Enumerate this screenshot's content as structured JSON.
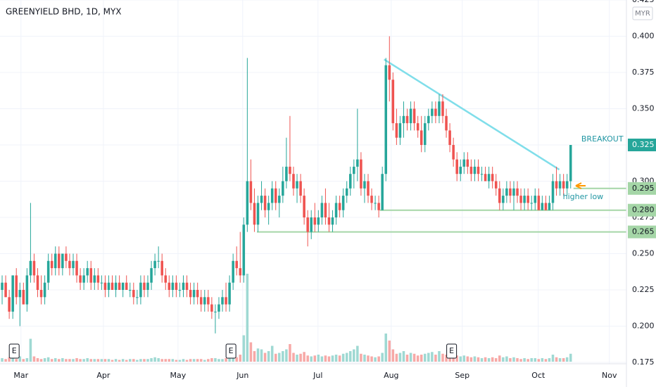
{
  "chart_data": {
    "type": "candlestick",
    "title": "GREENYIELD BHD, 1D, MYX",
    "currency": "MYR",
    "up_color": "#26a69a",
    "down_color": "#ef5350",
    "up_volume_color": "#9fd9d3",
    "down_volume_color": "#f7a9a7",
    "grid": true,
    "ylim": [
      0.175,
      0.425
    ],
    "yticks": [
      {
        "value": 0.175,
        "label": "0.175"
      },
      {
        "value": 0.2,
        "label": "0.200"
      },
      {
        "value": 0.225,
        "label": "0.225"
      },
      {
        "value": 0.25,
        "label": "0.250"
      },
      {
        "value": 0.275,
        "label": "0.275"
      },
      {
        "value": 0.3,
        "label": "0.300"
      },
      {
        "value": 0.325,
        "label": "0.325"
      },
      {
        "value": 0.35,
        "label": "0.350"
      },
      {
        "value": 0.375,
        "label": "0.375"
      },
      {
        "value": 0.4,
        "label": "0.400"
      },
      {
        "value": 0.425,
        "label": "0.425"
      }
    ],
    "xlim": [
      -0.6,
      175.7
    ],
    "xticks": [
      {
        "value": 5.3,
        "label": "Mar"
      },
      {
        "value": 28.5,
        "label": "Apr"
      },
      {
        "value": 49.5,
        "label": "May"
      },
      {
        "value": 67.7,
        "label": "Jun"
      },
      {
        "value": 88.9,
        "label": "Jul"
      },
      {
        "value": 109.5,
        "label": "Aug"
      },
      {
        "value": 129.5,
        "label": "Sep"
      },
      {
        "value": 150.9,
        "label": "Oct"
      },
      {
        "value": 170.9,
        "label": "Nov"
      }
    ],
    "ohlc": [
      [
        0.225,
        0.235,
        0.215,
        0.23
      ],
      [
        0.23,
        0.235,
        0.22,
        0.22
      ],
      [
        0.22,
        0.225,
        0.205,
        0.21
      ],
      [
        0.21,
        0.235,
        0.205,
        0.235
      ],
      [
        0.235,
        0.24,
        0.215,
        0.22
      ],
      [
        0.22,
        0.23,
        0.2,
        0.225
      ],
      [
        0.225,
        0.23,
        0.215,
        0.215
      ],
      [
        0.215,
        0.24,
        0.21,
        0.235
      ],
      [
        0.235,
        0.285,
        0.23,
        0.245
      ],
      [
        0.245,
        0.25,
        0.23,
        0.235
      ],
      [
        0.235,
        0.24,
        0.22,
        0.225
      ],
      [
        0.225,
        0.235,
        0.215,
        0.22
      ],
      [
        0.22,
        0.235,
        0.215,
        0.23
      ],
      [
        0.23,
        0.25,
        0.225,
        0.245
      ],
      [
        0.245,
        0.25,
        0.235,
        0.24
      ],
      [
        0.24,
        0.255,
        0.235,
        0.25
      ],
      [
        0.25,
        0.255,
        0.235,
        0.24
      ],
      [
        0.24,
        0.25,
        0.235,
        0.25
      ],
      [
        0.25,
        0.255,
        0.24,
        0.245
      ],
      [
        0.245,
        0.25,
        0.235,
        0.24
      ],
      [
        0.24,
        0.25,
        0.235,
        0.245
      ],
      [
        0.245,
        0.25,
        0.23,
        0.235
      ],
      [
        0.235,
        0.24,
        0.225,
        0.23
      ],
      [
        0.23,
        0.24,
        0.225,
        0.235
      ],
      [
        0.235,
        0.245,
        0.23,
        0.24
      ],
      [
        0.24,
        0.245,
        0.225,
        0.23
      ],
      [
        0.23,
        0.24,
        0.225,
        0.235
      ],
      [
        0.235,
        0.24,
        0.225,
        0.23
      ],
      [
        0.23,
        0.235,
        0.225,
        0.23
      ],
      [
        0.23,
        0.235,
        0.22,
        0.225
      ],
      [
        0.225,
        0.235,
        0.22,
        0.23
      ],
      [
        0.23,
        0.235,
        0.225,
        0.225
      ],
      [
        0.225,
        0.235,
        0.22,
        0.23
      ],
      [
        0.23,
        0.235,
        0.225,
        0.225
      ],
      [
        0.225,
        0.23,
        0.22,
        0.23
      ],
      [
        0.23,
        0.235,
        0.225,
        0.225
      ],
      [
        0.225,
        0.23,
        0.22,
        0.225
      ],
      [
        0.225,
        0.23,
        0.215,
        0.22
      ],
      [
        0.22,
        0.225,
        0.215,
        0.22
      ],
      [
        0.22,
        0.235,
        0.215,
        0.23
      ],
      [
        0.23,
        0.235,
        0.22,
        0.225
      ],
      [
        0.225,
        0.235,
        0.22,
        0.23
      ],
      [
        0.23,
        0.245,
        0.225,
        0.24
      ],
      [
        0.24,
        0.25,
        0.235,
        0.245
      ],
      [
        0.245,
        0.255,
        0.24,
        0.245
      ],
      [
        0.245,
        0.25,
        0.23,
        0.235
      ],
      [
        0.235,
        0.24,
        0.225,
        0.23
      ],
      [
        0.23,
        0.235,
        0.22,
        0.225
      ],
      [
        0.225,
        0.235,
        0.22,
        0.23
      ],
      [
        0.23,
        0.235,
        0.22,
        0.225
      ],
      [
        0.225,
        0.23,
        0.22,
        0.225
      ],
      [
        0.225,
        0.235,
        0.22,
        0.23
      ],
      [
        0.23,
        0.235,
        0.22,
        0.225
      ],
      [
        0.225,
        0.23,
        0.215,
        0.22
      ],
      [
        0.22,
        0.23,
        0.215,
        0.225
      ],
      [
        0.225,
        0.23,
        0.215,
        0.22
      ],
      [
        0.22,
        0.225,
        0.21,
        0.215
      ],
      [
        0.215,
        0.225,
        0.21,
        0.22
      ],
      [
        0.22,
        0.225,
        0.21,
        0.215
      ],
      [
        0.215,
        0.22,
        0.205,
        0.21
      ],
      [
        0.21,
        0.215,
        0.195,
        0.21
      ],
      [
        0.21,
        0.22,
        0.205,
        0.215
      ],
      [
        0.215,
        0.225,
        0.21,
        0.22
      ],
      [
        0.22,
        0.23,
        0.21,
        0.215
      ],
      [
        0.215,
        0.235,
        0.21,
        0.23
      ],
      [
        0.23,
        0.25,
        0.225,
        0.245
      ],
      [
        0.245,
        0.255,
        0.235,
        0.24
      ],
      [
        0.24,
        0.265,
        0.23,
        0.235
      ],
      [
        0.235,
        0.275,
        0.23,
        0.27
      ],
      [
        0.27,
        0.385,
        0.265,
        0.3
      ],
      [
        0.3,
        0.315,
        0.28,
        0.285
      ],
      [
        0.285,
        0.295,
        0.265,
        0.27
      ],
      [
        0.27,
        0.29,
        0.265,
        0.285
      ],
      [
        0.285,
        0.3,
        0.28,
        0.29
      ],
      [
        0.29,
        0.295,
        0.275,
        0.28
      ],
      [
        0.28,
        0.29,
        0.27,
        0.285
      ],
      [
        0.285,
        0.3,
        0.28,
        0.295
      ],
      [
        0.295,
        0.3,
        0.28,
        0.285
      ],
      [
        0.285,
        0.295,
        0.275,
        0.29
      ],
      [
        0.29,
        0.31,
        0.285,
        0.3
      ],
      [
        0.3,
        0.33,
        0.295,
        0.31
      ],
      [
        0.31,
        0.345,
        0.3,
        0.305
      ],
      [
        0.305,
        0.31,
        0.29,
        0.295
      ],
      [
        0.295,
        0.305,
        0.285,
        0.3
      ],
      [
        0.3,
        0.305,
        0.285,
        0.29
      ],
      [
        0.29,
        0.295,
        0.27,
        0.275
      ],
      [
        0.275,
        0.28,
        0.255,
        0.265
      ],
      [
        0.265,
        0.28,
        0.26,
        0.275
      ],
      [
        0.275,
        0.285,
        0.265,
        0.27
      ],
      [
        0.27,
        0.28,
        0.265,
        0.275
      ],
      [
        0.275,
        0.29,
        0.27,
        0.285
      ],
      [
        0.285,
        0.295,
        0.27,
        0.275
      ],
      [
        0.275,
        0.285,
        0.265,
        0.27
      ],
      [
        0.27,
        0.28,
        0.265,
        0.275
      ],
      [
        0.275,
        0.29,
        0.27,
        0.285
      ],
      [
        0.285,
        0.29,
        0.275,
        0.28
      ],
      [
        0.28,
        0.295,
        0.275,
        0.29
      ],
      [
        0.29,
        0.3,
        0.285,
        0.295
      ],
      [
        0.295,
        0.31,
        0.29,
        0.305
      ],
      [
        0.305,
        0.315,
        0.295,
        0.31
      ],
      [
        0.31,
        0.35,
        0.3,
        0.315
      ],
      [
        0.315,
        0.32,
        0.29,
        0.295
      ],
      [
        0.295,
        0.305,
        0.285,
        0.3
      ],
      [
        0.3,
        0.305,
        0.285,
        0.29
      ],
      [
        0.29,
        0.295,
        0.28,
        0.285
      ],
      [
        0.285,
        0.29,
        0.28,
        0.285
      ],
      [
        0.285,
        0.29,
        0.275,
        0.28
      ],
      [
        0.28,
        0.31,
        0.28,
        0.305
      ],
      [
        0.305,
        0.385,
        0.3,
        0.38
      ],
      [
        0.38,
        0.4,
        0.355,
        0.37
      ],
      [
        0.37,
        0.375,
        0.335,
        0.34
      ],
      [
        0.34,
        0.35,
        0.325,
        0.33
      ],
      [
        0.33,
        0.345,
        0.325,
        0.34
      ],
      [
        0.34,
        0.355,
        0.33,
        0.345
      ],
      [
        0.345,
        0.35,
        0.335,
        0.34
      ],
      [
        0.34,
        0.355,
        0.335,
        0.35
      ],
      [
        0.35,
        0.355,
        0.335,
        0.34
      ],
      [
        0.34,
        0.345,
        0.33,
        0.335
      ],
      [
        0.335,
        0.345,
        0.32,
        0.325
      ],
      [
        0.325,
        0.345,
        0.32,
        0.34
      ],
      [
        0.34,
        0.35,
        0.335,
        0.345
      ],
      [
        0.345,
        0.355,
        0.34,
        0.35
      ],
      [
        0.35,
        0.355,
        0.34,
        0.345
      ],
      [
        0.345,
        0.36,
        0.34,
        0.355
      ],
      [
        0.355,
        0.36,
        0.34,
        0.345
      ],
      [
        0.345,
        0.35,
        0.33,
        0.335
      ],
      [
        0.335,
        0.34,
        0.32,
        0.325
      ],
      [
        0.325,
        0.33,
        0.31,
        0.315
      ],
      [
        0.315,
        0.32,
        0.3,
        0.305
      ],
      [
        0.305,
        0.315,
        0.3,
        0.31
      ],
      [
        0.31,
        0.32,
        0.305,
        0.315
      ],
      [
        0.315,
        0.32,
        0.305,
        0.31
      ],
      [
        0.31,
        0.315,
        0.3,
        0.305
      ],
      [
        0.305,
        0.315,
        0.3,
        0.31
      ],
      [
        0.31,
        0.315,
        0.3,
        0.305
      ],
      [
        0.305,
        0.31,
        0.3,
        0.305
      ],
      [
        0.305,
        0.31,
        0.3,
        0.3
      ],
      [
        0.3,
        0.31,
        0.295,
        0.305
      ],
      [
        0.305,
        0.31,
        0.295,
        0.3
      ],
      [
        0.3,
        0.305,
        0.29,
        0.295
      ],
      [
        0.295,
        0.3,
        0.28,
        0.285
      ],
      [
        0.285,
        0.295,
        0.28,
        0.29
      ],
      [
        0.29,
        0.3,
        0.285,
        0.295
      ],
      [
        0.295,
        0.3,
        0.285,
        0.29
      ],
      [
        0.29,
        0.3,
        0.28,
        0.295
      ],
      [
        0.295,
        0.3,
        0.285,
        0.29
      ],
      [
        0.29,
        0.295,
        0.28,
        0.285
      ],
      [
        0.285,
        0.295,
        0.28,
        0.29
      ],
      [
        0.29,
        0.295,
        0.28,
        0.285
      ],
      [
        0.285,
        0.29,
        0.28,
        0.285
      ],
      [
        0.285,
        0.295,
        0.28,
        0.29
      ],
      [
        0.29,
        0.295,
        0.28,
        0.28
      ],
      [
        0.28,
        0.29,
        0.28,
        0.285
      ],
      [
        0.285,
        0.29,
        0.28,
        0.28
      ],
      [
        0.28,
        0.29,
        0.28,
        0.285
      ],
      [
        0.285,
        0.305,
        0.28,
        0.3
      ],
      [
        0.3,
        0.31,
        0.29,
        0.295
      ],
      [
        0.295,
        0.305,
        0.29,
        0.3
      ],
      [
        0.3,
        0.305,
        0.29,
        0.295
      ],
      [
        0.295,
        0.305,
        0.29,
        0.3
      ],
      [
        0.3,
        0.325,
        0.295,
        0.325
      ]
    ],
    "volume": [
      4,
      3,
      5,
      4,
      3,
      6,
      3,
      4,
      26,
      6,
      4,
      3,
      4,
      5,
      3,
      4,
      3,
      4,
      3,
      3,
      3,
      4,
      3,
      3,
      4,
      3,
      3,
      3,
      3,
      3,
      3,
      2,
      3,
      2,
      3,
      2,
      3,
      3,
      2,
      3,
      3,
      3,
      4,
      5,
      4,
      3,
      3,
      3,
      3,
      2,
      2,
      3,
      2,
      3,
      3,
      3,
      3,
      2,
      3,
      4,
      4,
      3,
      3,
      4,
      5,
      6,
      5,
      8,
      30,
      100,
      22,
      12,
      15,
      14,
      10,
      12,
      18,
      9,
      10,
      12,
      14,
      20,
      10,
      8,
      9,
      11,
      7,
      6,
      7,
      8,
      6,
      7,
      6,
      7,
      8,
      7,
      9,
      10,
      12,
      14,
      18,
      9,
      8,
      7,
      6,
      5,
      6,
      10,
      32,
      24,
      14,
      9,
      10,
      12,
      8,
      10,
      9,
      7,
      8,
      9,
      10,
      11,
      8,
      12,
      9,
      8,
      7,
      8,
      7,
      6,
      7,
      6,
      5,
      6,
      5,
      4,
      5,
      4,
      5,
      4,
      7,
      5,
      6,
      4,
      5,
      4,
      3,
      4,
      3,
      4,
      4,
      3,
      4,
      3,
      4,
      8,
      5,
      4,
      4,
      5,
      9
    ],
    "trendline": {
      "x": [
        107.5,
        156.8
      ],
      "y": [
        0.384,
        0.308
      ],
      "color": "#80deea"
    },
    "levels": [
      {
        "value": 0.295,
        "label": "0.295",
        "from": 160.8
      },
      {
        "value": 0.28,
        "label": "0.280",
        "from": 106.3
      },
      {
        "value": 0.265,
        "label": "0.265",
        "from": 71.7
      }
    ],
    "level_color": "#a5d6a7",
    "last_price": {
      "value": 0.325,
      "label": "0.325"
    },
    "earnings": [
      {
        "x": 3.4,
        "label": "E"
      },
      {
        "x": 64.4,
        "label": "E"
      },
      {
        "x": 126.5,
        "label": "E"
      }
    ],
    "annotations": [
      {
        "text": "BREAKOUT",
        "x": 163,
        "y": 0.329
      },
      {
        "text": "higher low",
        "x": 157.8,
        "y": 0.289
      }
    ]
  }
}
